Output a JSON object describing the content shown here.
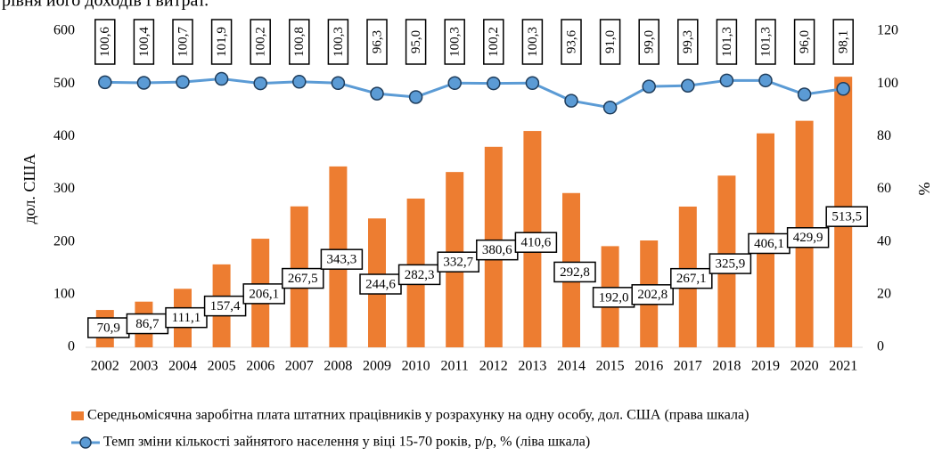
{
  "heading": "рівня його доходів і витрат.",
  "chart_data": {
    "type": "combo",
    "categories": [
      "2002",
      "2003",
      "2004",
      "2005",
      "2006",
      "2007",
      "2008",
      "2009",
      "2010",
      "2011",
      "2012",
      "2013",
      "2014",
      "2015",
      "2016",
      "2017",
      "2018",
      "2019",
      "2020",
      "2021"
    ],
    "series": [
      {
        "name": "Середньомісячна заробітна плата штатних працівників у розрахунку на одну особу, дол. США (права шкала)",
        "type": "bar",
        "axis": "y",
        "color": "#ed7d31",
        "values": [
          70.9,
          86.7,
          111.1,
          157.4,
          206.1,
          267.5,
          343.3,
          244.6,
          282.3,
          332.7,
          380.6,
          410.6,
          292.8,
          192.0,
          202.8,
          267.1,
          325.9,
          406.1,
          429.9,
          513.5
        ],
        "value_labels": [
          "70,9",
          "86,7",
          "111,1",
          "157,4",
          "206,1",
          "267,5",
          "343,3",
          "244,6",
          "282,3",
          "332,7",
          "380,6",
          "410,6",
          "292,8",
          "192,0",
          "202,8",
          "267,1",
          "325,9",
          "406,1",
          "429,9",
          "513,5"
        ]
      },
      {
        "name": "Темп зміни кількості зайнятого населення у віці 15-70 років, р/р, % (ліва шкала)",
        "type": "line",
        "axis": "y2",
        "color": "#5b9bd5",
        "values": [
          100.6,
          100.4,
          100.7,
          101.9,
          100.2,
          100.8,
          100.3,
          96.3,
          95.0,
          100.3,
          100.2,
          100.3,
          93.6,
          91.0,
          99.0,
          99.3,
          101.3,
          101.3,
          96.0,
          98.1
        ],
        "value_labels": [
          "100,6",
          "100,4",
          "100,7",
          "101,9",
          "100,2",
          "100,8",
          "100,3",
          "96,3",
          "95,0",
          "100,3",
          "100,2",
          "100,3",
          "93,6",
          "91,0",
          "99,0",
          "99,3",
          "101,3",
          "101,3",
          "96,0",
          "98,1"
        ]
      }
    ],
    "y_label": "дол. США",
    "y2_label": "%",
    "ylim": [
      0,
      600
    ],
    "yticks": [
      0,
      100,
      200,
      300,
      400,
      500,
      600
    ],
    "y2lim": [
      0,
      120
    ],
    "y2ticks": [
      0,
      20,
      40,
      60,
      80,
      100,
      120
    ],
    "legend": "bottom"
  }
}
